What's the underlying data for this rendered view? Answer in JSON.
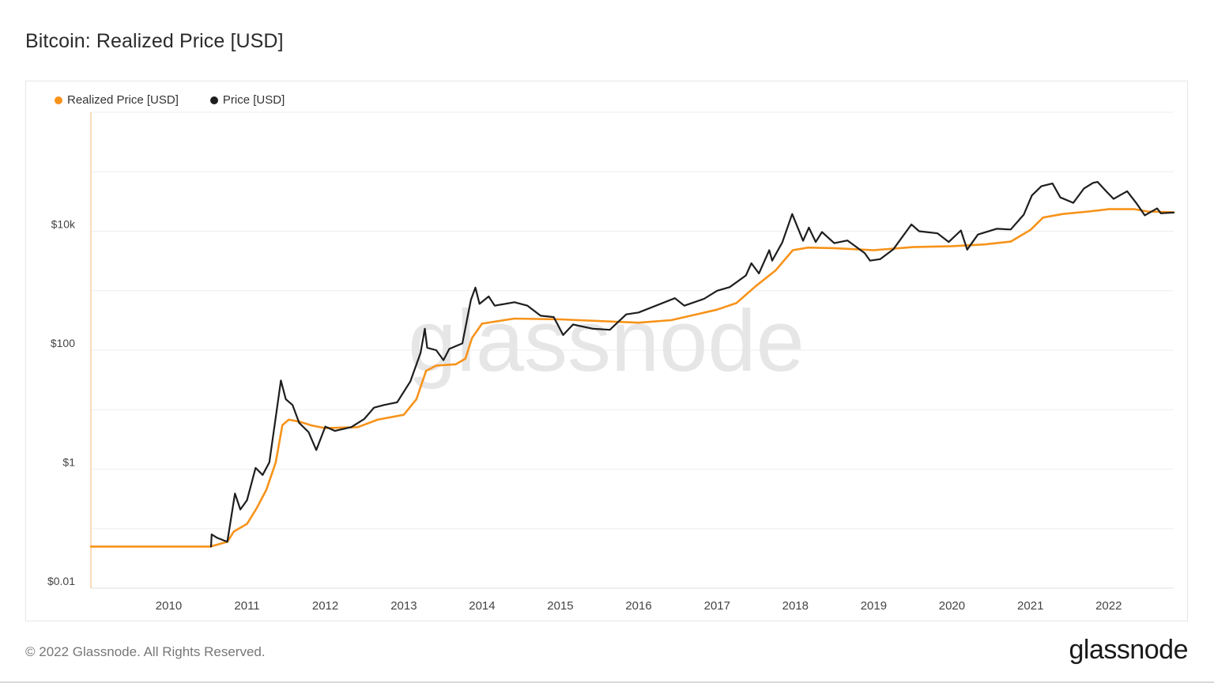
{
  "page": {
    "title": "Bitcoin: Realized Price [USD]",
    "copyright": "© 2022 Glassnode. All Rights Reserved.",
    "logo": "glassnode",
    "watermark": "glassnode"
  },
  "colors": {
    "realized": "#f7931a",
    "price": "#1e1e1e",
    "grid": "#eeeeee",
    "axis_text": "#444444"
  },
  "chart_data": {
    "type": "line",
    "title": "Bitcoin: Realized Price [USD]",
    "xlabel": "",
    "ylabel": "",
    "y_scale": "log",
    "ylim": [
      0.01,
      1000000
    ],
    "xlim": [
      "2009-01-03",
      "2022-10-31"
    ],
    "grid": true,
    "legend_position": "top-left",
    "y_ticks": [
      {
        "value": 0.01,
        "label": "$0.01"
      },
      {
        "value": 1,
        "label": "$1"
      },
      {
        "value": 100,
        "label": "$100"
      },
      {
        "value": 10000,
        "label": "$10k"
      }
    ],
    "x_ticks": [
      {
        "date": "2010-01-01",
        "label": "2010"
      },
      {
        "date": "2011-01-01",
        "label": "2011"
      },
      {
        "date": "2012-01-01",
        "label": "2012"
      },
      {
        "date": "2013-01-01",
        "label": "2013"
      },
      {
        "date": "2014-01-01",
        "label": "2014"
      },
      {
        "date": "2015-01-01",
        "label": "2015"
      },
      {
        "date": "2016-01-01",
        "label": "2016"
      },
      {
        "date": "2017-01-01",
        "label": "2017"
      },
      {
        "date": "2018-01-01",
        "label": "2018"
      },
      {
        "date": "2019-01-01",
        "label": "2019"
      },
      {
        "date": "2020-01-01",
        "label": "2020"
      },
      {
        "date": "2021-01-01",
        "label": "2021"
      },
      {
        "date": "2022-01-01",
        "label": "2022"
      }
    ],
    "series": [
      {
        "name": "Realized Price [USD]",
        "color": "#f7931a",
        "points": [
          [
            "2009-01-03",
            0.05
          ],
          [
            "2010-07-15",
            0.05
          ],
          [
            "2010-10-01",
            0.06
          ],
          [
            "2010-11-01",
            0.09
          ],
          [
            "2011-01-01",
            0.12
          ],
          [
            "2011-02-15",
            0.22
          ],
          [
            "2011-04-01",
            0.45
          ],
          [
            "2011-05-15",
            1.3
          ],
          [
            "2011-06-15",
            5.5
          ],
          [
            "2011-07-15",
            6.8
          ],
          [
            "2011-09-01",
            6.3
          ],
          [
            "2011-11-01",
            5.4
          ],
          [
            "2012-01-01",
            4.9
          ],
          [
            "2012-06-01",
            5.1
          ],
          [
            "2012-09-01",
            6.8
          ],
          [
            "2013-01-01",
            8.2
          ],
          [
            "2013-03-01",
            15
          ],
          [
            "2013-04-15",
            45
          ],
          [
            "2013-06-01",
            55
          ],
          [
            "2013-09-01",
            58
          ],
          [
            "2013-10-15",
            72
          ],
          [
            "2013-11-15",
            160
          ],
          [
            "2014-01-01",
            280
          ],
          [
            "2014-06-01",
            340
          ],
          [
            "2015-01-01",
            330
          ],
          [
            "2016-01-01",
            290
          ],
          [
            "2016-06-01",
            320
          ],
          [
            "2017-01-01",
            480
          ],
          [
            "2017-04-01",
            620
          ],
          [
            "2017-07-01",
            1200
          ],
          [
            "2017-10-01",
            2200
          ],
          [
            "2017-12-20",
            4800
          ],
          [
            "2018-03-01",
            5300
          ],
          [
            "2018-07-01",
            5200
          ],
          [
            "2019-01-01",
            4800
          ],
          [
            "2019-07-01",
            5400
          ],
          [
            "2020-01-01",
            5600
          ],
          [
            "2020-06-01",
            6000
          ],
          [
            "2020-10-01",
            6700
          ],
          [
            "2021-01-01",
            10500
          ],
          [
            "2021-03-01",
            17000
          ],
          [
            "2021-06-01",
            19500
          ],
          [
            "2021-10-01",
            21500
          ],
          [
            "2022-01-01",
            23500
          ],
          [
            "2022-05-01",
            23500
          ],
          [
            "2022-07-01",
            21500
          ],
          [
            "2022-10-31",
            20800
          ]
        ]
      },
      {
        "name": "Price [USD]",
        "color": "#1e1e1e",
        "points": [
          [
            "2010-07-17",
            0.05
          ],
          [
            "2010-07-20",
            0.08
          ],
          [
            "2010-08-15",
            0.07
          ],
          [
            "2010-10-01",
            0.06
          ],
          [
            "2010-11-06",
            0.39
          ],
          [
            "2010-12-01",
            0.21
          ],
          [
            "2011-01-01",
            0.3
          ],
          [
            "2011-02-10",
            1.05
          ],
          [
            "2011-03-15",
            0.8
          ],
          [
            "2011-04-15",
            1.3
          ],
          [
            "2011-05-15",
            7.5
          ],
          [
            "2011-06-08",
            31
          ],
          [
            "2011-07-01",
            15
          ],
          [
            "2011-08-01",
            12
          ],
          [
            "2011-09-01",
            6
          ],
          [
            "2011-10-15",
            4.2
          ],
          [
            "2011-11-20",
            2.1
          ],
          [
            "2012-01-01",
            5.2
          ],
          [
            "2012-02-15",
            4.4
          ],
          [
            "2012-05-01",
            5.1
          ],
          [
            "2012-07-01",
            7
          ],
          [
            "2012-08-15",
            10.8
          ],
          [
            "2012-10-01",
            12
          ],
          [
            "2012-12-01",
            13.3
          ],
          [
            "2013-02-01",
            30
          ],
          [
            "2013-03-20",
            90
          ],
          [
            "2013-04-09",
            230
          ],
          [
            "2013-04-20",
            110
          ],
          [
            "2013-06-01",
            100
          ],
          [
            "2013-07-05",
            68
          ],
          [
            "2013-08-01",
            105
          ],
          [
            "2013-10-01",
            130
          ],
          [
            "2013-11-10",
            700
          ],
          [
            "2013-12-01",
            1130
          ],
          [
            "2013-12-20",
            600
          ],
          [
            "2014-02-01",
            800
          ],
          [
            "2014-03-01",
            560
          ],
          [
            "2014-06-01",
            640
          ],
          [
            "2014-08-01",
            560
          ],
          [
            "2014-10-01",
            380
          ],
          [
            "2014-12-01",
            360
          ],
          [
            "2015-01-14",
            180
          ],
          [
            "2015-03-01",
            270
          ],
          [
            "2015-06-01",
            230
          ],
          [
            "2015-08-20",
            220
          ],
          [
            "2015-11-04",
            400
          ],
          [
            "2016-01-01",
            430
          ],
          [
            "2016-06-18",
            750
          ],
          [
            "2016-08-01",
            560
          ],
          [
            "2016-11-01",
            730
          ],
          [
            "2017-01-01",
            1000
          ],
          [
            "2017-03-01",
            1150
          ],
          [
            "2017-05-15",
            1800
          ],
          [
            "2017-06-10",
            2900
          ],
          [
            "2017-07-15",
            1950
          ],
          [
            "2017-09-01",
            4800
          ],
          [
            "2017-09-15",
            3200
          ],
          [
            "2017-11-01",
            6500
          ],
          [
            "2017-12-17",
            19500
          ],
          [
            "2018-02-06",
            6900
          ],
          [
            "2018-03-05",
            11500
          ],
          [
            "2018-04-06",
            6600
          ],
          [
            "2018-05-05",
            9700
          ],
          [
            "2018-07-01",
            6300
          ],
          [
            "2018-09-01",
            7000
          ],
          [
            "2018-11-20",
            4300
          ],
          [
            "2018-12-15",
            3200
          ],
          [
            "2019-02-01",
            3400
          ],
          [
            "2019-04-03",
            5000
          ],
          [
            "2019-06-26",
            13000
          ],
          [
            "2019-08-01",
            10000
          ],
          [
            "2019-10-26",
            9200
          ],
          [
            "2019-12-17",
            6600
          ],
          [
            "2020-02-12",
            10300
          ],
          [
            "2020-03-12",
            4900
          ],
          [
            "2020-05-01",
            8800
          ],
          [
            "2020-07-27",
            11000
          ],
          [
            "2020-10-01",
            10700
          ],
          [
            "2020-12-01",
            19000
          ],
          [
            "2021-01-08",
            40000
          ],
          [
            "2021-02-21",
            57000
          ],
          [
            "2021-04-14",
            63500
          ],
          [
            "2021-05-20",
            37000
          ],
          [
            "2021-07-20",
            30000
          ],
          [
            "2021-09-07",
            52000
          ],
          [
            "2021-10-20",
            65000
          ],
          [
            "2021-11-10",
            67500
          ],
          [
            "2021-12-20",
            47000
          ],
          [
            "2022-01-24",
            35000
          ],
          [
            "2022-03-28",
            47000
          ],
          [
            "2022-05-12",
            29000
          ],
          [
            "2022-06-18",
            18500
          ],
          [
            "2022-08-15",
            24200
          ],
          [
            "2022-09-01",
            20000
          ],
          [
            "2022-10-31",
            20600
          ]
        ]
      }
    ]
  }
}
